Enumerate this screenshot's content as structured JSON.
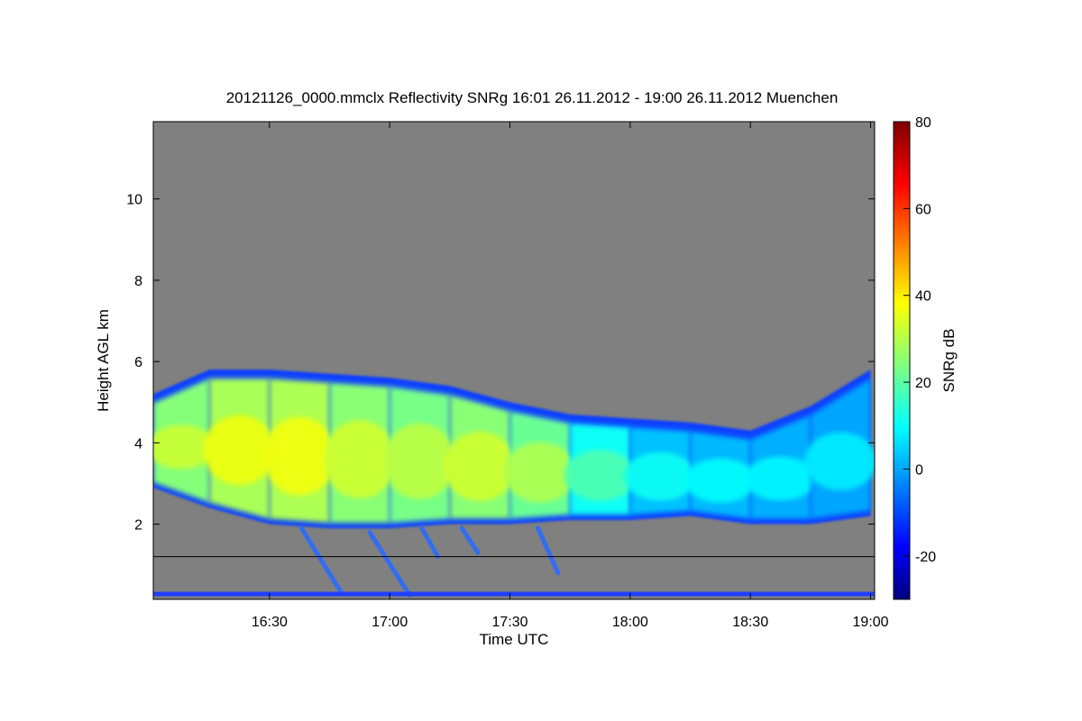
{
  "chart_data": {
    "type": "heatmap",
    "title": "20121126_0000.mmclx Reflectivity SNRg   16:01 26.11.2012 - 19:00 26.11.2012 Muenchen",
    "xlabel": "Time UTC",
    "ylabel": "Height AGL km",
    "x_range": [
      "16:01",
      "19:01"
    ],
    "y_range": [
      0.15,
      11.9
    ],
    "x_ticks": [
      "16:30",
      "17:00",
      "17:30",
      "18:00",
      "18:30",
      "19:00"
    ],
    "y_ticks": [
      2,
      4,
      6,
      8,
      10
    ],
    "background_color": "#808080",
    "reference_line_height_km": 1.2,
    "colorbar": {
      "label": "SNRg dB",
      "range": [
        -30,
        80
      ],
      "ticks": [
        -20,
        0,
        20,
        40,
        60,
        80
      ],
      "colormap": "jet"
    },
    "cloud_layer": {
      "description_points_time_top_base_peak": [
        [
          "16:01",
          5.2,
          2.9,
          30
        ],
        [
          "16:15",
          5.8,
          2.4,
          35
        ],
        [
          "16:30",
          5.8,
          2.0,
          38
        ],
        [
          "16:45",
          5.7,
          1.9,
          36
        ],
        [
          "17:00",
          5.6,
          1.9,
          30
        ],
        [
          "17:15",
          5.4,
          2.0,
          32
        ],
        [
          "17:30",
          5.0,
          2.0,
          34
        ],
        [
          "17:45",
          4.7,
          2.1,
          25
        ],
        [
          "18:00",
          4.6,
          2.1,
          12
        ],
        [
          "18:15",
          4.5,
          2.2,
          10
        ],
        [
          "18:30",
          4.3,
          2.0,
          10
        ],
        [
          "18:45",
          4.9,
          2.0,
          8
        ],
        [
          "19:00",
          5.8,
          2.2,
          8
        ]
      ]
    },
    "fall_streaks": [
      [
        "16:38",
        1.9,
        "16:48",
        0.3
      ],
      [
        "16:55",
        1.8,
        "17:05",
        0.25
      ],
      [
        "17:08",
        1.9,
        "17:12",
        1.2
      ],
      [
        "17:18",
        1.9,
        "17:22",
        1.3
      ],
      [
        "17:37",
        1.9,
        "17:42",
        0.8
      ]
    ]
  }
}
